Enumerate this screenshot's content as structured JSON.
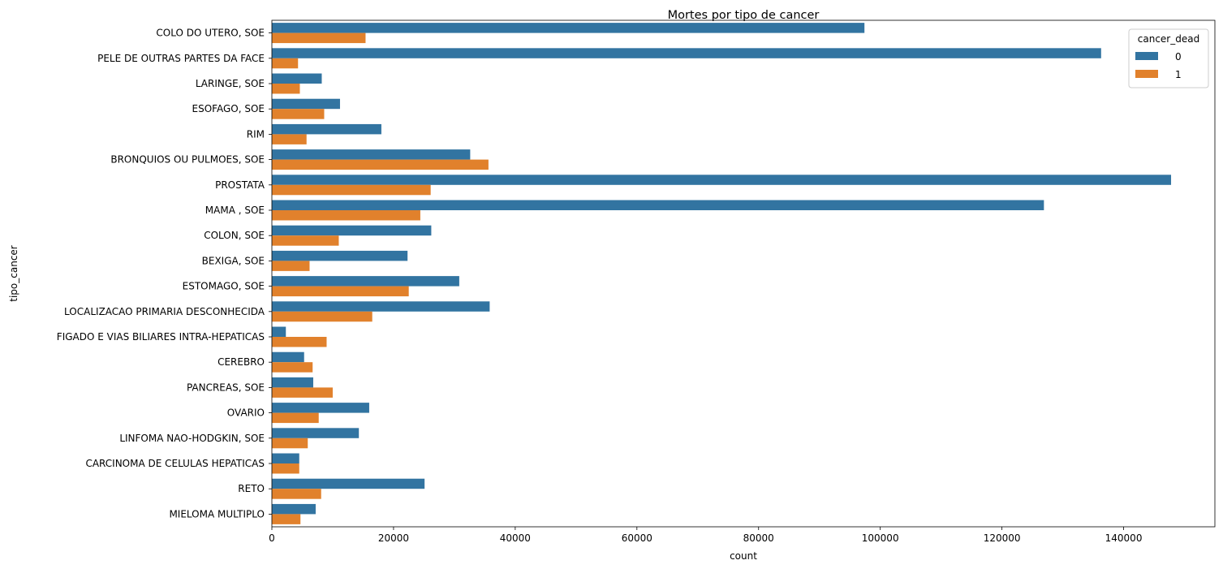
{
  "chart_data": {
    "type": "bar",
    "orientation": "horizontal",
    "title": "Mortes por tipo de cancer",
    "xlabel": "count",
    "ylabel": "tipo_cancer",
    "xlim": [
      0,
      155000
    ],
    "xticks": [
      0,
      20000,
      40000,
      60000,
      80000,
      100000,
      120000,
      140000
    ],
    "grid": false,
    "legend": {
      "title": "cancer_dead",
      "placement": "top-right"
    },
    "categories": [
      "COLO DO UTERO, SOE",
      "PELE DE OUTRAS PARTES DA FACE",
      "LARINGE, SOE",
      "ESOFAGO, SOE",
      "RIM",
      "BRONQUIOS OU PULMOES, SOE",
      "PROSTATA",
      "MAMA , SOE",
      "COLON, SOE",
      "BEXIGA, SOE",
      "ESTOMAGO, SOE",
      "LOCALIZACAO PRIMARIA DESCONHECIDA",
      "FIGADO E VIAS BILIARES INTRA-HEPATICAS",
      "CEREBRO",
      "PANCREAS, SOE",
      "OVARIO",
      "LINFOMA NAO-HODGKIN, SOE",
      "CARCINOMA DE CELULAS HEPATICAS",
      "RETO",
      "MIELOMA MULTIPLO"
    ],
    "series": [
      {
        "name": "0",
        "color": "#3274a1",
        "values": [
          97400,
          136300,
          8200,
          11200,
          18000,
          32600,
          147800,
          126900,
          26200,
          22300,
          30800,
          35800,
          2300,
          5300,
          6800,
          16000,
          14300,
          4500,
          25100,
          7200
        ]
      },
      {
        "name": "1",
        "color": "#e1812c",
        "values": [
          15400,
          4300,
          4600,
          8600,
          5700,
          35600,
          26100,
          24400,
          11000,
          6200,
          22500,
          16500,
          9000,
          6700,
          10000,
          7700,
          5900,
          4500,
          8100,
          4700
        ]
      }
    ]
  }
}
